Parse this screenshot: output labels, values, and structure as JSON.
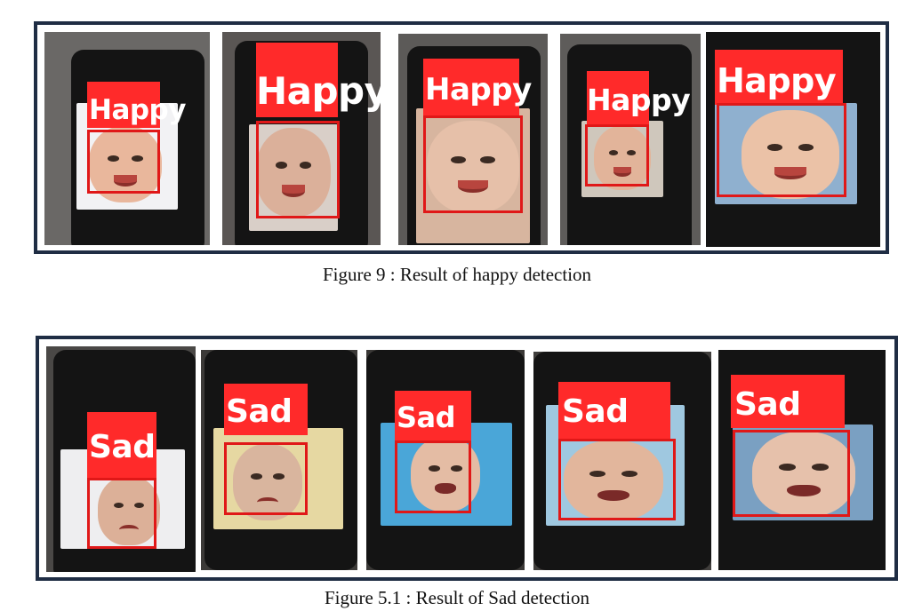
{
  "figure_happy": {
    "caption": "Figure 9 : Result of happy detection",
    "label_color": "#ff2a2a",
    "box_color": "#e01818",
    "panels": [
      {
        "label": "Happy",
        "emotion": "happy"
      },
      {
        "label": "Happy",
        "emotion": "happy"
      },
      {
        "label": "Happy",
        "emotion": "happy"
      },
      {
        "label": "Happy",
        "emotion": "happy"
      },
      {
        "label": "Happy",
        "emotion": "happy"
      }
    ]
  },
  "figure_sad": {
    "caption": "Figure 5.1 : Result of Sad detection",
    "label_color": "#ff2a2a",
    "box_color": "#e01818",
    "panels": [
      {
        "label": "Sad",
        "emotion": "sad"
      },
      {
        "label": "Sad",
        "emotion": "sad"
      },
      {
        "label": "Sad",
        "emotion": "crying"
      },
      {
        "label": "Sad",
        "emotion": "crying"
      },
      {
        "label": "Sad",
        "emotion": "crying"
      }
    ]
  }
}
